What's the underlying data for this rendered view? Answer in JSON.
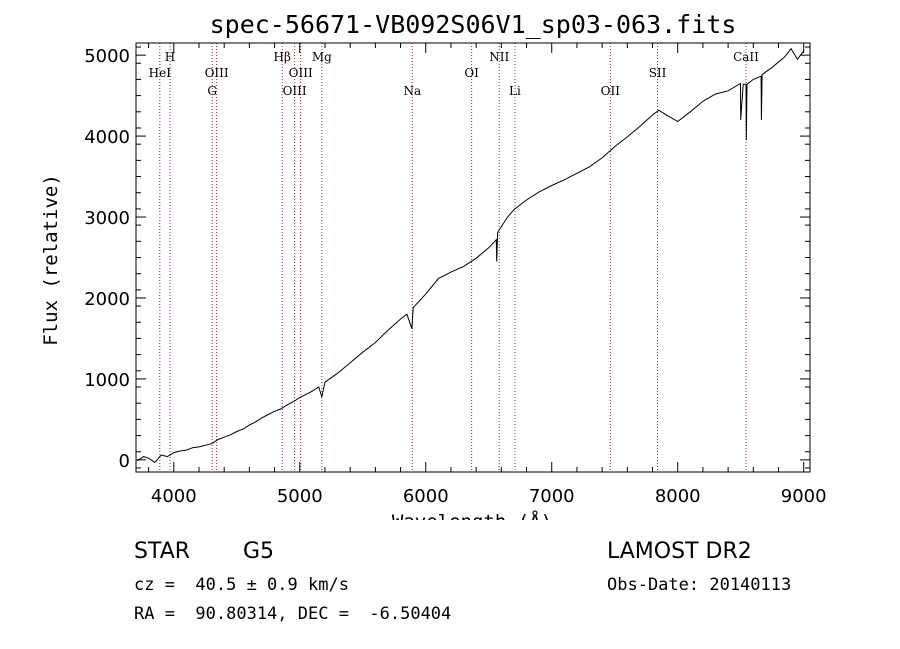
{
  "chart_data": {
    "type": "line",
    "title": "spec-56671-VB092S06V1_sp03-063.fits",
    "xlabel": "Wavelength (Å)",
    "ylabel": "Flux (relative)",
    "xlim": [
      3700,
      9050
    ],
    "ylim": [
      -150,
      5150
    ],
    "xticks": [
      4000,
      5000,
      6000,
      7000,
      8000,
      9000
    ],
    "yticks": [
      0,
      1000,
      2000,
      3000,
      4000,
      5000
    ],
    "series": [
      {
        "color": "#000000",
        "points": [
          [
            3710,
            -10
          ],
          [
            3760,
            40
          ],
          [
            3800,
            20
          ],
          [
            3850,
            -30
          ],
          [
            3900,
            60
          ],
          [
            3950,
            40
          ],
          [
            4000,
            90
          ],
          [
            4050,
            110
          ],
          [
            4100,
            120
          ],
          [
            4150,
            150
          ],
          [
            4200,
            160
          ],
          [
            4250,
            180
          ],
          [
            4300,
            200
          ],
          [
            4350,
            250
          ],
          [
            4400,
            280
          ],
          [
            4450,
            310
          ],
          [
            4500,
            350
          ],
          [
            4550,
            380
          ],
          [
            4600,
            430
          ],
          [
            4650,
            470
          ],
          [
            4700,
            520
          ],
          [
            4750,
            560
          ],
          [
            4800,
            600
          ],
          [
            4850,
            630
          ],
          [
            4900,
            680
          ],
          [
            4950,
            720
          ],
          [
            5000,
            770
          ],
          [
            5050,
            810
          ],
          [
            5100,
            850
          ],
          [
            5150,
            900
          ],
          [
            5175,
            780
          ],
          [
            5200,
            960
          ],
          [
            5300,
            1070
          ],
          [
            5400,
            1200
          ],
          [
            5500,
            1330
          ],
          [
            5600,
            1450
          ],
          [
            5700,
            1600
          ],
          [
            5800,
            1740
          ],
          [
            5850,
            1800
          ],
          [
            5890,
            1620
          ],
          [
            5900,
            1880
          ],
          [
            6000,
            2050
          ],
          [
            6100,
            2240
          ],
          [
            6200,
            2320
          ],
          [
            6300,
            2390
          ],
          [
            6400,
            2490
          ],
          [
            6500,
            2620
          ],
          [
            6560,
            2720
          ],
          [
            6563,
            2450
          ],
          [
            6570,
            2810
          ],
          [
            6650,
            3000
          ],
          [
            6700,
            3090
          ],
          [
            6800,
            3210
          ],
          [
            6900,
            3310
          ],
          [
            7000,
            3390
          ],
          [
            7100,
            3460
          ],
          [
            7200,
            3540
          ],
          [
            7300,
            3620
          ],
          [
            7400,
            3730
          ],
          [
            7500,
            3870
          ],
          [
            7600,
            3990
          ],
          [
            7700,
            4120
          ],
          [
            7800,
            4260
          ],
          [
            7850,
            4320
          ],
          [
            7900,
            4270
          ],
          [
            8000,
            4180
          ],
          [
            8100,
            4300
          ],
          [
            8200,
            4430
          ],
          [
            8300,
            4520
          ],
          [
            8400,
            4560
          ],
          [
            8498,
            4650
          ],
          [
            8500,
            4200
          ],
          [
            8520,
            4640
          ],
          [
            8542,
            4640
          ],
          [
            8544,
            3950
          ],
          [
            8550,
            4640
          ],
          [
            8600,
            4700
          ],
          [
            8662,
            4740
          ],
          [
            8664,
            4200
          ],
          [
            8670,
            4760
          ],
          [
            8750,
            4850
          ],
          [
            8850,
            4980
          ],
          [
            8900,
            5080
          ],
          [
            8950,
            4950
          ],
          [
            9000,
            5050
          ]
        ]
      }
    ],
    "annotations": [
      {
        "label": "HeI",
        "x": 3889,
        "tier": 2
      },
      {
        "label": "H",
        "x": 3970,
        "tier": 1
      },
      {
        "label": "OIII",
        "x": 4340,
        "tier": 2
      },
      {
        "label": "G",
        "x": 4305,
        "tier": 3
      },
      {
        "label": "Hβ",
        "x": 4861,
        "tier": 1
      },
      {
        "label": "OIII",
        "x": 5007,
        "tier": 2
      },
      {
        "label": "OIII",
        "x": 4959,
        "tier": 3
      },
      {
        "label": "Mg",
        "x": 5175,
        "tier": 1
      },
      {
        "label": "Na",
        "x": 5893,
        "tier": 3
      },
      {
        "label": "OI",
        "x": 6364,
        "tier": 2
      },
      {
        "label": "NII",
        "x": 6583,
        "tier": 1
      },
      {
        "label": "Li",
        "x": 6708,
        "tier": 3
      },
      {
        "label": "OII",
        "x": 7465,
        "tier": 3
      },
      {
        "label": "SII",
        "x": 7840,
        "tier": 2
      },
      {
        "label": "CaII",
        "x": 8542,
        "tier": 1
      }
    ]
  },
  "info": {
    "object_class": "STAR",
    "subclass": "G5",
    "survey": "LAMOST DR2",
    "redshift": "cz =  40.5 ± 0.9 km/s",
    "obs_date": "Obs-Date: 20140113",
    "coords": "RA =  90.80314, DEC =  -6.50404"
  },
  "colors": {
    "axis": "#000000",
    "line_marker": "#aa2222"
  }
}
